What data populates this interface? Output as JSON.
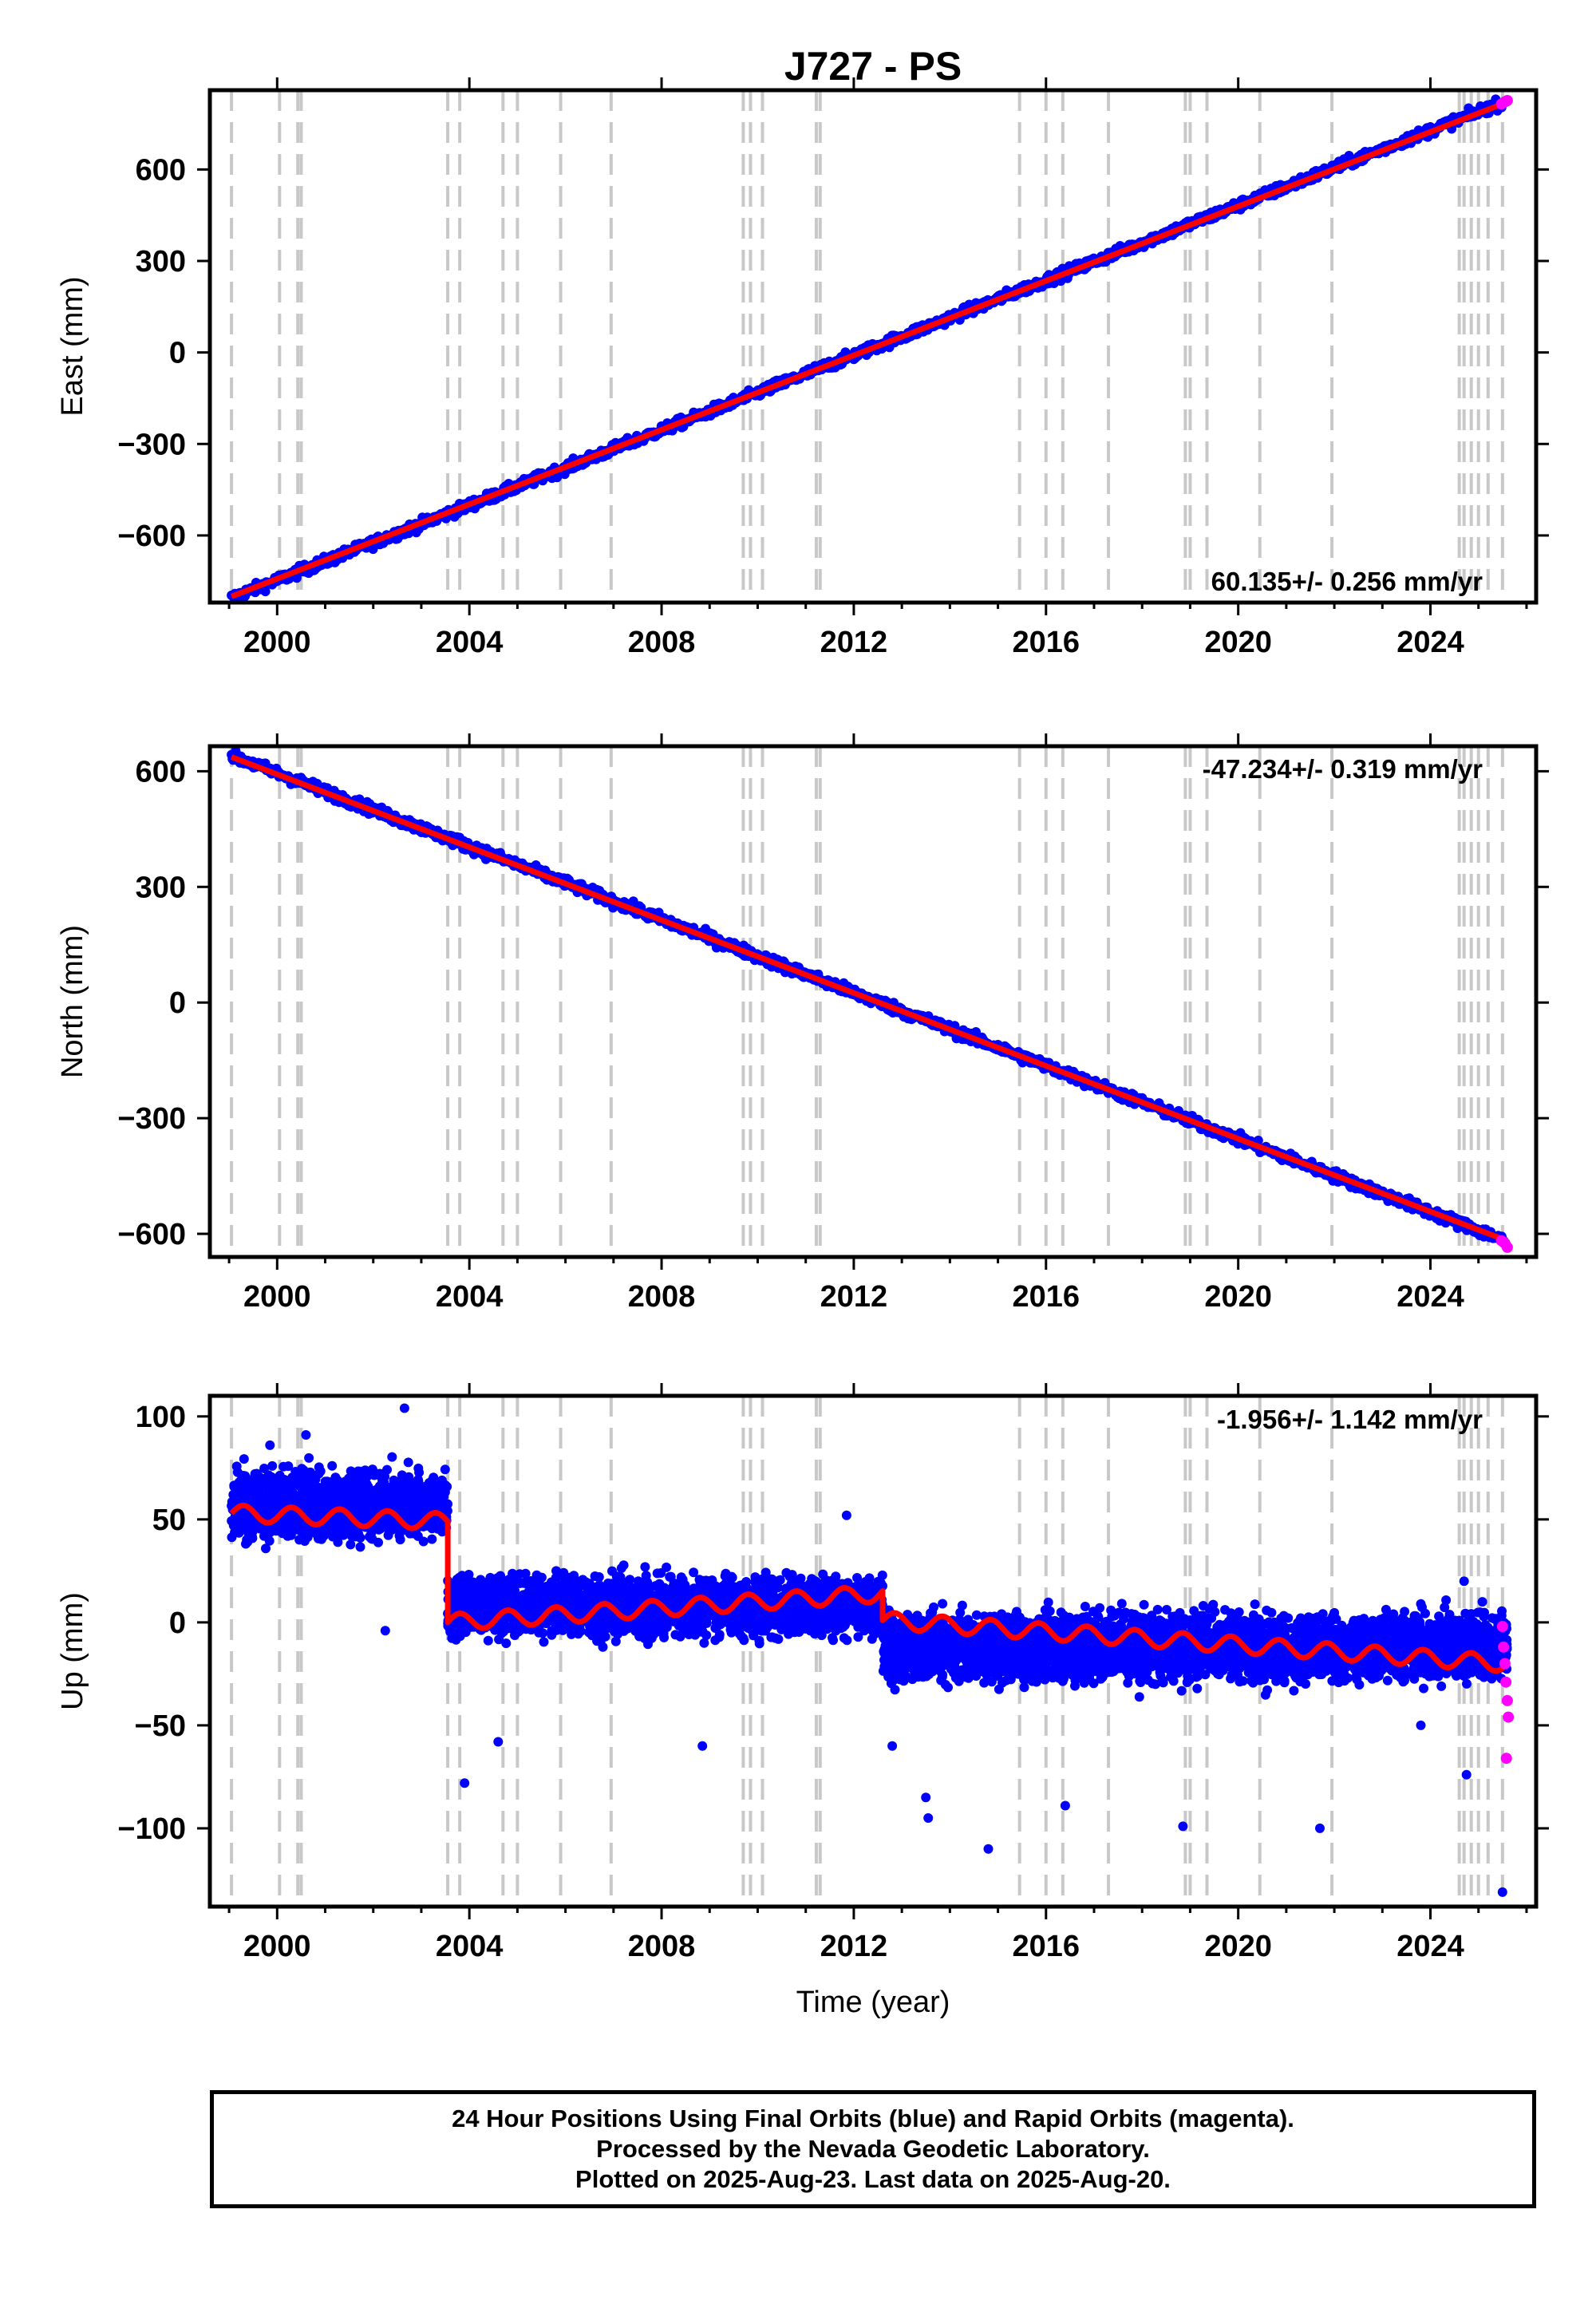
{
  "title": "J727 - PS",
  "chart_data": [
    {
      "type": "scatter",
      "panel": "east",
      "title": "J727 - PS",
      "ylabel": "East (mm)",
      "xlabel": "",
      "xlim": [
        1998.6,
        2026.2
      ],
      "ylim": [
        -820,
        860
      ],
      "x_ticks": [
        2000,
        2004,
        2008,
        2012,
        2016,
        2020,
        2024
      ],
      "x_tick_labels": [
        "2000",
        "2004",
        "2008",
        "2012",
        "2016",
        "2020",
        "2024"
      ],
      "y_ticks": [
        -600,
        -300,
        0,
        300,
        600
      ],
      "y_tick_labels": [
        "−600",
        "−300",
        "0",
        "300",
        "600"
      ],
      "rate_label": "60.135+/- 0.256 mm/yr",
      "series": [
        {
          "color": "#0000ff",
          "start": [
            1999.05,
            -805
          ],
          "end": [
            2025.5,
            820
          ],
          "scatter": 12
        },
        {
          "color": "#ff00ff",
          "x": [
            2025.48,
            2025.55,
            2025.6
          ],
          "y": [
            815,
            822,
            826
          ]
        },
        {
          "color": "#ff0000",
          "type": "line",
          "x": [
            1999.05,
            2025.6
          ],
          "y": [
            -800,
            821
          ]
        }
      ]
    },
    {
      "type": "scatter",
      "panel": "north",
      "ylabel": "North (mm)",
      "xlabel": "",
      "xlim": [
        1998.6,
        2026.2
      ],
      "ylim": [
        -660,
        665
      ],
      "x_ticks": [
        2000,
        2004,
        2008,
        2012,
        2016,
        2020,
        2024
      ],
      "x_tick_labels": [
        "2000",
        "2004",
        "2008",
        "2012",
        "2016",
        "2020",
        "2024"
      ],
      "y_ticks": [
        -600,
        -300,
        0,
        300,
        600
      ],
      "y_tick_labels": [
        "−600",
        "−300",
        "0",
        "300",
        "600"
      ],
      "rate_label": "-47.234+/- 0.319 mm/yr",
      "series": [
        {
          "color": "#0000ff",
          "start": [
            1999.05,
            640
          ],
          "end": [
            2025.5,
            -615
          ],
          "scatter": 10
        },
        {
          "color": "#ff00ff",
          "x": [
            2025.48,
            2025.55,
            2025.6
          ],
          "y": [
            -618,
            -625,
            -635
          ]
        },
        {
          "color": "#ff0000",
          "type": "line",
          "x": [
            1999.05,
            2025.6
          ],
          "y": [
            637,
            -618
          ]
        }
      ]
    },
    {
      "type": "scatter",
      "panel": "up",
      "ylabel": "Up (mm)",
      "xlabel": "Time (year)",
      "xlim": [
        1998.6,
        2026.2
      ],
      "ylim": [
        -138,
        110
      ],
      "x_ticks": [
        2000,
        2004,
        2008,
        2012,
        2016,
        2020,
        2024
      ],
      "x_tick_labels": [
        "2000",
        "2004",
        "2008",
        "2012",
        "2016",
        "2020",
        "2024"
      ],
      "y_ticks": [
        -100,
        -50,
        0,
        50,
        100
      ],
      "y_tick_labels": [
        "−100",
        "−50",
        "0",
        "50",
        "100"
      ],
      "rate_label": "-1.956+/- 1.142 mm/yr",
      "offset_epoch": 2003.55,
      "series": [
        {
          "color": "#0000ff",
          "segments": [
            {
              "from": 1999.05,
              "to": 2003.55,
              "mean": 57,
              "spread": 11
            },
            {
              "from": 2003.55,
              "to": 2012.6,
              "mean": 8,
              "spread": 10
            },
            {
              "from": 2012.6,
              "to": 2025.6,
              "mean": -12,
              "spread": 11
            }
          ],
          "outliers": [
            [
              2002.65,
              104
            ],
            [
              2000.6,
              91
            ],
            [
              1999.85,
              86
            ],
            [
              2002.25,
              -4
            ],
            [
              2003.9,
              -78
            ],
            [
              2004.6,
              -58
            ],
            [
              2008.85,
              -60
            ],
            [
              2011.85,
              52
            ],
            [
              2012.8,
              -60
            ],
            [
              2013.55,
              -95
            ],
            [
              2013.5,
              -85
            ],
            [
              2014.8,
              -110
            ],
            [
              2016.4,
              -89
            ],
            [
              2018.85,
              -99
            ],
            [
              2021.7,
              -100
            ],
            [
              2024.75,
              -74
            ],
            [
              2024.7,
              20
            ],
            [
              2025.5,
              -131
            ],
            [
              2023.8,
              -50
            ]
          ]
        },
        {
          "color": "#ff00ff",
          "x": [
            2025.5,
            2025.52,
            2025.55,
            2025.57,
            2025.6,
            2025.62,
            2025.58
          ],
          "y": [
            -2,
            -12,
            -20,
            -29,
            -38,
            -46,
            -66
          ]
        },
        {
          "color": "#ff0000",
          "type": "line",
          "seasonal_amplitude": 4,
          "pieces": [
            {
              "from": 1999.05,
              "to": 2003.55,
              "level_start": 53,
              "level_end": 49
            },
            {
              "from": 2003.55,
              "to": 2012.6,
              "level_start": 0,
              "level_end": 14
            },
            {
              "from": 2012.6,
              "to": 2025.6,
              "level_start": 1,
              "level_end": -20
            }
          ]
        }
      ]
    }
  ],
  "event_lines": [
    1999.05,
    2000.05,
    2000.43,
    2000.5,
    2003.55,
    2003.8,
    2004.7,
    2005.0,
    2005.9,
    2006.95,
    2009.7,
    2009.85,
    2010.1,
    2011.22,
    2011.3,
    2015.45,
    2016.0,
    2016.35,
    2017.3,
    2018.9,
    2019.0,
    2019.35,
    2020.45,
    2021.95,
    2024.6,
    2024.7,
    2024.85,
    2025.0,
    2025.2,
    2025.5
  ],
  "footer": {
    "line1": "24 Hour Positions Using Final Orbits (blue) and Rapid Orbits (magenta).",
    "line2": "Processed by the Nevada Geodetic Laboratory.",
    "line3": "Plotted on 2025-Aug-23. Last data on 2025-Aug-20."
  }
}
